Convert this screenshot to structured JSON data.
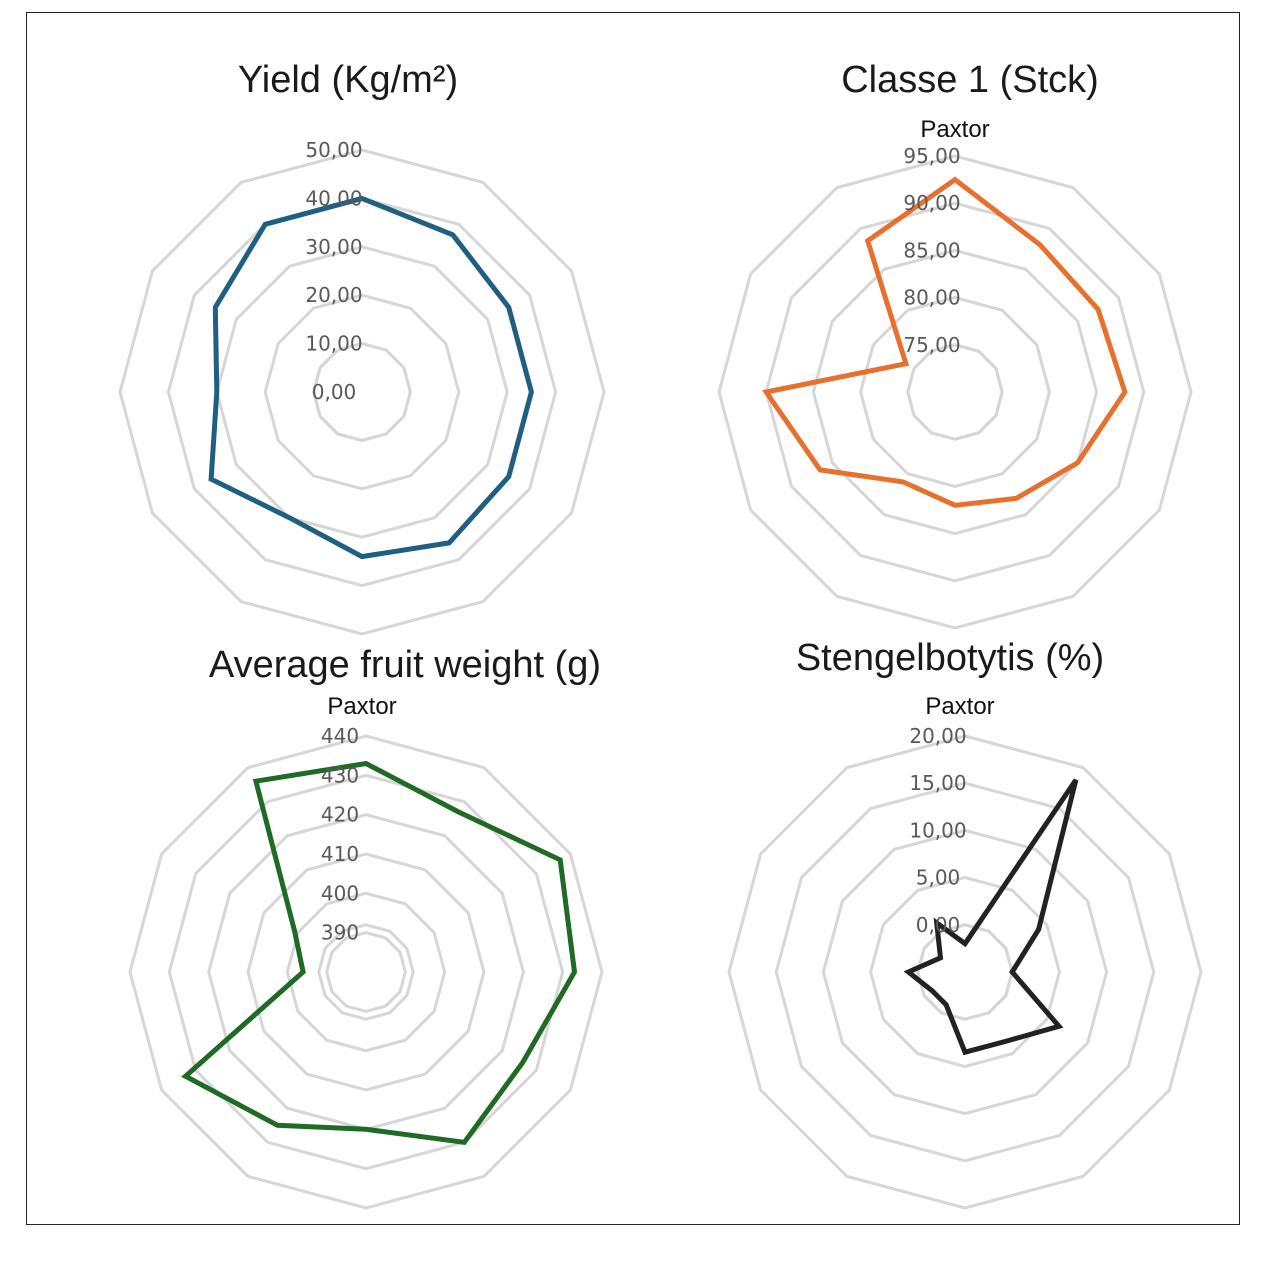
{
  "chart_data": [
    {
      "type": "radar",
      "title": "Yield (Kg/m²)",
      "subtitle": "",
      "color": "#1f5f82",
      "ticks": [
        "0,00",
        "10,00",
        "20,00",
        "30,00",
        "40,00",
        "50,00"
      ],
      "range": [
        0,
        50
      ],
      "values": [
        40,
        37.5,
        35,
        35,
        35,
        36,
        34,
        30,
        36,
        30,
        35,
        40
      ]
    },
    {
      "type": "radar",
      "title": "Classe 1 (Stck)",
      "subtitle": "Paxtor",
      "color": "#e8702e",
      "ticks": [
        "75,00",
        "80,00",
        "85,00",
        "90,00",
        "95,00"
      ],
      "range": [
        70,
        95
      ],
      "values": [
        92.5,
        88,
        87.5,
        88,
        85,
        83,
        82,
        81,
        86.5,
        90,
        76,
        88.5
      ]
    },
    {
      "type": "radar",
      "title": "Average fruit weight (g)",
      "subtitle": "Paxtor",
      "color": "#1f6b25",
      "ticks": [
        "390",
        "400",
        "410",
        "420",
        "430",
        "440"
      ],
      "range": [
        380,
        440
      ],
      "values": [
        433,
        427,
        437,
        433,
        426,
        430,
        420,
        425,
        433,
        396,
        401,
        436
      ]
    },
    {
      "type": "radar",
      "title": "Stengelbotytis (%)",
      "subtitle": "Paxtor",
      "color": "#222222",
      "ticks": [
        "0,00",
        "5,00",
        "10,00",
        "15,00",
        "20,00"
      ],
      "range": [
        -5,
        20
      ],
      "values": [
        -2,
        18.5,
        4,
        0,
        6.5,
        3.5,
        3.5,
        -1,
        -1,
        1,
        -2,
        1
      ]
    }
  ]
}
